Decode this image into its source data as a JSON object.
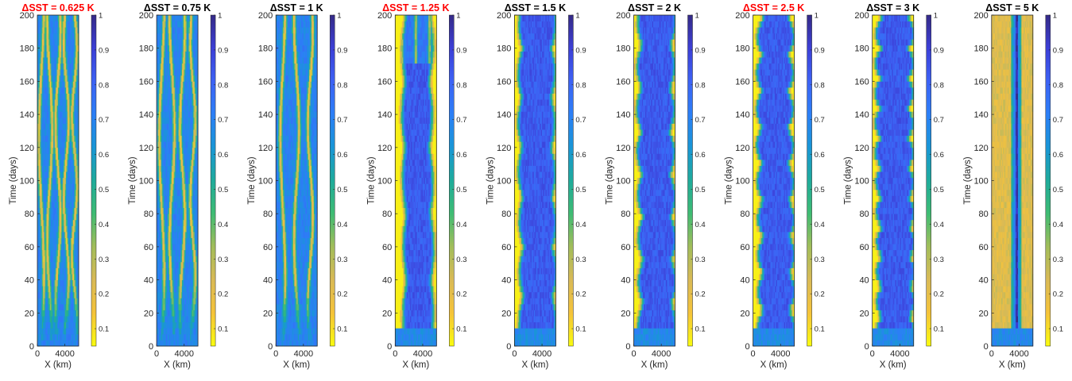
{
  "colormap": {
    "name": "parula-reversed",
    "stops": [
      "#f9fb0e",
      "#f5c33a",
      "#d9ba56",
      "#a2bd5a",
      "#3fbc73",
      "#1fab9b",
      "#1996d6",
      "#2c7ff6",
      "#3d62f4",
      "#3c3fd6",
      "#352a87"
    ]
  },
  "chart_data": [
    {
      "type": "heatmap",
      "title": "ΔSST = 0.625 K",
      "title_color": "#ff0000",
      "xlabel": "X (km)",
      "ylabel": "Time (days)",
      "xlim": [
        0,
        6000
      ],
      "ylim": [
        0,
        200
      ],
      "xticks": [
        0,
        4000
      ],
      "yticks": [
        0,
        20,
        40,
        60,
        80,
        100,
        120,
        140,
        160,
        180,
        200
      ],
      "colorbar": {
        "clim": [
          0.05,
          1
        ],
        "ticks": [
          0.1,
          0.2,
          0.3,
          0.4,
          0.5,
          0.6,
          0.7,
          0.8,
          0.9,
          1
        ]
      },
      "pattern": "multiple meandering narrow dry (yellow) bands over mostly moist (blue-green) field"
    },
    {
      "type": "heatmap",
      "title": "ΔSST = 0.75 K",
      "title_color": "#000000",
      "xlabel": "X (km)",
      "ylabel": "Time (days)",
      "xlim": [
        0,
        6000
      ],
      "ylim": [
        0,
        200
      ],
      "xticks": [
        0,
        4000
      ],
      "yticks": [
        0,
        20,
        40,
        60,
        80,
        100,
        120,
        140,
        160,
        180,
        200
      ],
      "colorbar": {
        "clim": [
          0.05,
          1
        ],
        "ticks": [
          0.1,
          0.2,
          0.3,
          0.4,
          0.5,
          0.6,
          0.7,
          0.8,
          0.9,
          1
        ]
      },
      "pattern": "several wavy dry (yellow) bands migrating in time"
    },
    {
      "type": "heatmap",
      "title": "ΔSST = 1 K",
      "title_color": "#000000",
      "xlabel": "X (km)",
      "ylabel": "Time (days)",
      "xlim": [
        0,
        6000
      ],
      "ylim": [
        0,
        200
      ],
      "xticks": [
        0,
        4000
      ],
      "yticks": [
        0,
        20,
        40,
        60,
        80,
        100,
        120,
        140,
        160,
        180,
        200
      ],
      "colorbar": {
        "clim": [
          0.05,
          1
        ],
        "ticks": [
          0.1,
          0.2,
          0.3,
          0.4,
          0.5,
          0.6,
          0.7,
          0.8,
          0.9,
          1
        ]
      },
      "pattern": "wavy dry (yellow) bands, fewer than at 0.75 K"
    },
    {
      "type": "heatmap",
      "title": "ΔSST = 1.25 K",
      "title_color": "#ff0000",
      "xlabel": "X (km)",
      "ylabel": "Time (days)",
      "xlim": [
        0,
        6000
      ],
      "ylim": [
        0,
        200
      ],
      "xticks": [
        0,
        4000
      ],
      "yticks": [
        0,
        20,
        40,
        60,
        80,
        100,
        120,
        140,
        160,
        180,
        200
      ],
      "colorbar": {
        "clim": [
          0.05,
          1
        ],
        "ticks": [
          0.1,
          0.2,
          0.3,
          0.4,
          0.5,
          0.6,
          0.7,
          0.8,
          0.9,
          1
        ]
      },
      "pattern": "mostly moist center with dry edges appearing, dry bands near top"
    },
    {
      "type": "heatmap",
      "title": "ΔSST = 1.5 K",
      "title_color": "#000000",
      "xlabel": "X (km)",
      "ylabel": "Time (days)",
      "xlim": [
        0,
        6000
      ],
      "ylim": [
        0,
        200
      ],
      "xticks": [
        0,
        4000
      ],
      "yticks": [
        0,
        20,
        40,
        60,
        80,
        100,
        120,
        140,
        160,
        180,
        200
      ],
      "colorbar": {
        "clim": [
          0.05,
          1
        ],
        "ticks": [
          0.1,
          0.2,
          0.3,
          0.4,
          0.5,
          0.6,
          0.7,
          0.8,
          0.9,
          1
        ]
      },
      "pattern": "moist center band widening and narrowing, dry edges"
    },
    {
      "type": "heatmap",
      "title": "ΔSST = 2 K",
      "title_color": "#000000",
      "xlabel": "X (km)",
      "ylabel": "Time (days)",
      "xlim": [
        0,
        6000
      ],
      "ylim": [
        0,
        200
      ],
      "xticks": [
        0,
        4000
      ],
      "yticks": [
        0,
        20,
        40,
        60,
        80,
        100,
        120,
        140,
        160,
        180,
        200
      ],
      "colorbar": {
        "clim": [
          0.05,
          1
        ],
        "ticks": [
          0.1,
          0.2,
          0.3,
          0.4,
          0.5,
          0.6,
          0.7,
          0.8,
          0.9,
          1
        ]
      },
      "pattern": "oscillating moist center band with dry (yellow) edges"
    },
    {
      "type": "heatmap",
      "title": "ΔSST = 2.5 K",
      "title_color": "#ff0000",
      "xlabel": "X (km)",
      "ylabel": "Time (days)",
      "xlim": [
        0,
        6000
      ],
      "ylim": [
        0,
        200
      ],
      "xticks": [
        0,
        4000
      ],
      "yticks": [
        0,
        20,
        40,
        60,
        80,
        100,
        120,
        140,
        160,
        180,
        200
      ],
      "colorbar": {
        "clim": [
          0.05,
          1
        ],
        "ticks": [
          0.1,
          0.2,
          0.3,
          0.4,
          0.5,
          0.6,
          0.7,
          0.8,
          0.9,
          1
        ]
      },
      "pattern": "periodic diamond-shaped pulsing of moist center band"
    },
    {
      "type": "heatmap",
      "title": "ΔSST = 3 K",
      "title_color": "#000000",
      "xlabel": "X (km)",
      "ylabel": "Time (days)",
      "xlim": [
        0,
        6000
      ],
      "ylim": [
        0,
        200
      ],
      "xticks": [
        0,
        4000
      ],
      "yticks": [
        0,
        20,
        40,
        60,
        80,
        100,
        120,
        140,
        160,
        180,
        200
      ],
      "colorbar": {
        "clim": [
          0.05,
          1
        ],
        "ticks": [
          0.1,
          0.2,
          0.3,
          0.4,
          0.5,
          0.6,
          0.7,
          0.8,
          0.9,
          1
        ]
      },
      "pattern": "regular diamond-shaped pulsing of moist center band"
    },
    {
      "type": "heatmap",
      "title": "ΔSST = 5 K",
      "title_color": "#000000",
      "xlabel": "X (km)",
      "ylabel": "Time (days)",
      "xlim": [
        0,
        6000
      ],
      "ylim": [
        0,
        200
      ],
      "xticks": [
        0,
        4000
      ],
      "yticks": [
        0,
        20,
        40,
        60,
        80,
        100,
        120,
        140,
        160,
        180,
        200
      ],
      "colorbar": {
        "clim": [
          0.05,
          1
        ],
        "ticks": [
          0.1,
          0.2,
          0.3,
          0.4,
          0.5,
          0.6,
          0.7,
          0.8,
          0.9,
          1
        ]
      },
      "pattern": "narrow steady moist center band at x≈3500 km, dry (yellow) elsewhere"
    }
  ]
}
